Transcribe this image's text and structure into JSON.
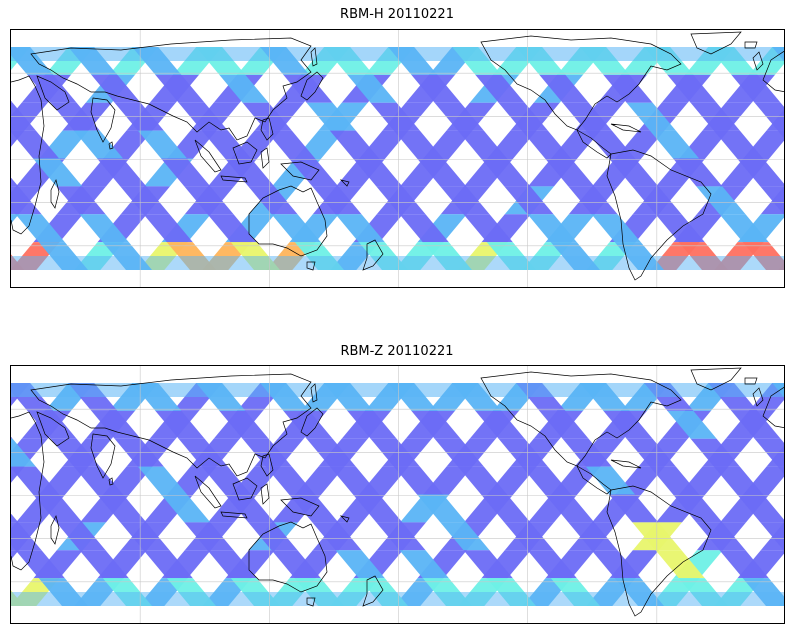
{
  "panels": [
    {
      "title": "RBM-H 20110221",
      "variant": "H"
    },
    {
      "title": "RBM-Z 20110221",
      "variant": "Z"
    }
  ],
  "colors": {
    "swath_low": "#6b6bf5",
    "swath_mid": "#5ab4f5",
    "swath_cyan": "#6ef0e6",
    "swath_yellow": "#e8f56b",
    "swath_orange": "#ffb45a",
    "swath_red": "#ff7060",
    "coast": "#000000",
    "grid": "#c8c8c8"
  }
}
